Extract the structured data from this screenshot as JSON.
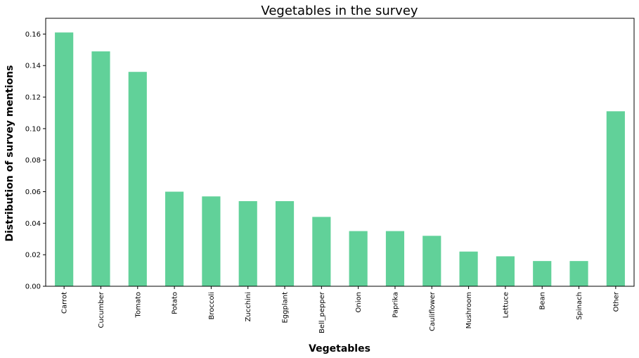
{
  "chart_data": {
    "type": "bar",
    "title": "Vegetables in the survey",
    "xlabel": "Vegetables",
    "ylabel": "Distribution of survey mentions",
    "categories": [
      "Carrot",
      "Cucumber",
      "Tomato",
      "Potato",
      "Broccoli",
      "Zucchini",
      "Eggplant",
      "Bell_pepper",
      "Onion",
      "Paprika",
      "Cauliflower",
      "Mushroom",
      "Lettuce",
      "Bean",
      "Spinach",
      "Other"
    ],
    "values": [
      0.161,
      0.149,
      0.136,
      0.06,
      0.057,
      0.054,
      0.054,
      0.044,
      0.035,
      0.035,
      0.032,
      0.022,
      0.019,
      0.016,
      0.016,
      0.111
    ],
    "ylim": [
      0,
      0.17
    ],
    "yticks": [
      "0.00",
      "0.02",
      "0.04",
      "0.06",
      "0.08",
      "0.10",
      "0.12",
      "0.14",
      "0.16"
    ],
    "grid": false,
    "bar_color": "#61d199"
  }
}
